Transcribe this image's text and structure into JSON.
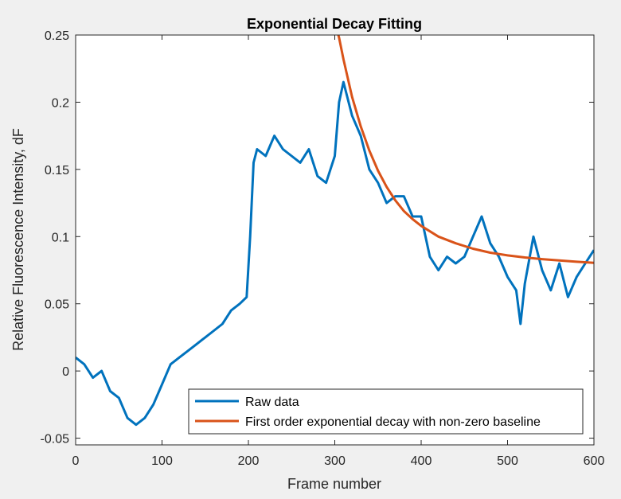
{
  "chart_data": {
    "type": "line",
    "title": "Exponential Decay Fitting",
    "xlabel": "Frame number",
    "ylabel": "Relative Fluorescence Intensity, dF",
    "xlim": [
      0,
      600
    ],
    "ylim": [
      -0.055,
      0.25
    ],
    "x_ticks": [
      0,
      100,
      200,
      300,
      400,
      500,
      600
    ],
    "y_ticks": [
      -0.05,
      0,
      0.05,
      0.1,
      0.15,
      0.2,
      0.25
    ],
    "x_tick_labels": [
      "0",
      "100",
      "200",
      "300",
      "400",
      "500",
      "600"
    ],
    "y_tick_labels": [
      "-0.05",
      "0",
      "0.05",
      "0.1",
      "0.15",
      "0.2",
      "0.25"
    ],
    "grid": false,
    "legend_position": "bottom-right",
    "series": [
      {
        "name": "Raw data",
        "color": "#0072BD",
        "x": [
          0,
          10,
          20,
          30,
          40,
          50,
          60,
          70,
          80,
          90,
          100,
          110,
          120,
          130,
          140,
          150,
          160,
          170,
          180,
          190,
          198,
          202,
          206,
          210,
          220,
          230,
          240,
          250,
          260,
          270,
          280,
          290,
          300,
          305,
          310,
          320,
          330,
          340,
          350,
          360,
          370,
          380,
          390,
          400,
          410,
          420,
          430,
          440,
          450,
          460,
          470,
          480,
          490,
          500,
          510,
          515,
          520,
          530,
          540,
          550,
          560,
          570,
          580,
          590,
          600
        ],
        "y": [
          0.01,
          0.005,
          -0.005,
          0.0,
          -0.015,
          -0.02,
          -0.035,
          -0.04,
          -0.035,
          -0.025,
          -0.01,
          0.005,
          0.01,
          0.015,
          0.02,
          0.025,
          0.03,
          0.035,
          0.045,
          0.05,
          0.055,
          0.1,
          0.155,
          0.165,
          0.16,
          0.175,
          0.165,
          0.16,
          0.155,
          0.165,
          0.145,
          0.14,
          0.16,
          0.2,
          0.215,
          0.19,
          0.175,
          0.15,
          0.14,
          0.125,
          0.13,
          0.13,
          0.115,
          0.115,
          0.085,
          0.075,
          0.085,
          0.08,
          0.085,
          0.1,
          0.115,
          0.095,
          0.085,
          0.07,
          0.06,
          0.035,
          0.065,
          0.1,
          0.075,
          0.06,
          0.08,
          0.055,
          0.07,
          0.08,
          0.09
        ]
      },
      {
        "name": "First order exponential decay with non-zero baseline",
        "color": "#D95319",
        "x": [
          300,
          305,
          310,
          320,
          330,
          340,
          350,
          360,
          370,
          380,
          390,
          400,
          420,
          440,
          460,
          480,
          500,
          520,
          540,
          560,
          580,
          600
        ],
        "y": [
          0.26,
          0.248,
          0.232,
          0.204,
          0.182,
          0.164,
          0.149,
          0.137,
          0.127,
          0.119,
          0.113,
          0.108,
          0.1,
          0.095,
          0.091,
          0.088,
          0.086,
          0.0845,
          0.0832,
          0.0822,
          0.0813,
          0.0805
        ]
      }
    ]
  }
}
